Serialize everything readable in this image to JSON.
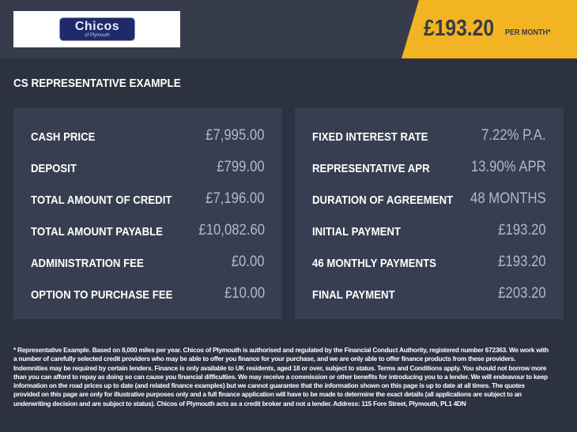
{
  "logo": {
    "name": "Chicos",
    "sub": "of Plymouth"
  },
  "banner": {
    "price": "£193.20",
    "per_month": "PER MONTH*",
    "color": "#f2b422"
  },
  "title": "CS REPRESENTATIVE EXAMPLE",
  "left": [
    {
      "label": "CASH PRICE",
      "value": "£7,995.00"
    },
    {
      "label": "DEPOSIT",
      "value": "£799.00"
    },
    {
      "label": "TOTAL AMOUNT OF CREDIT",
      "value": "£7,196.00"
    },
    {
      "label": "TOTAL AMOUNT PAYABLE",
      "value": "£10,082.60"
    },
    {
      "label": "ADMINISTRATION FEE",
      "value": "£0.00"
    },
    {
      "label": "OPTION TO PURCHASE FEE",
      "value": "£10.00"
    }
  ],
  "right": [
    {
      "label": "FIXED INTEREST RATE",
      "value": "7.22% P.A."
    },
    {
      "label": "REPRESENTATIVE APR",
      "value": "13.90% APR"
    },
    {
      "label": "DURATION OF AGREEMENT",
      "value": "48 MONTHS"
    },
    {
      "label": "INITIAL PAYMENT",
      "value": "£193.20"
    },
    {
      "label": "46 MONTHLY PAYMENTS",
      "value": "£193.20"
    },
    {
      "label": "FINAL PAYMENT",
      "value": "£203.20"
    }
  ],
  "footer": "* Representative Example. Based on 8,000 miles per year. Chicos of Plymouth is authorised and regulated by the Financial Conduct Authority, registered number 672363. We work with a number of carefully selected credit providers who may be able to offer you finance for your purchase, and we are only able to offer finance products from these providers. Indemnities may be required by certain lenders. Finance is only available to UK residents, aged 18 or over, subject to status. Terms and Conditions apply. You should not borrow more than you can afford to repay as doing so can cause you financial difficulties. We may receive a commission or other benefits for introducing you to a lender. We will endeavour to keep information on the road prices up to date (and related finance examples) but we cannot guarantee that the information shown on this page is up to date at all times. The quotes provided on this page are only for illustrative purposes only and a full finance application will have to be made to determine the exact details (all applications are subject to an underwriting decision and are subject to status). Chicos of Plymouth acts as a credit broker and not a lender. Address: 115 Fore Street, Plymouth, PL1 4DN"
}
